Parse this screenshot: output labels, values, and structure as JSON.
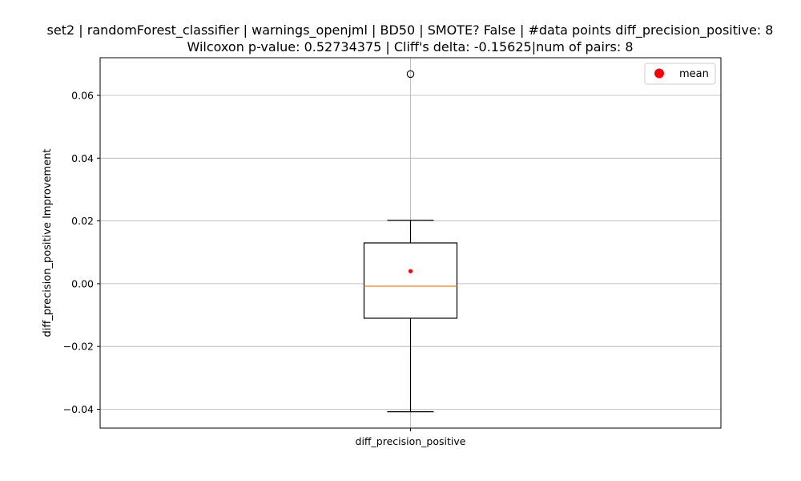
{
  "chart_data": {
    "type": "box",
    "title_line1": "set2 | randomForest_classifier | warnings_openjml | BD50 | SMOTE? False | #data points diff_precision_positive: 8",
    "title_line2": "Wilcoxon p-value: 0.52734375 | Cliff's delta: -0.15625|num of pairs: 8",
    "xlabel": "",
    "ylabel": "diff_precision_positive Improvement",
    "categories": [
      "diff_precision_positive"
    ],
    "ylim": [
      -0.046,
      0.072
    ],
    "yticks": [
      -0.04,
      -0.02,
      0.0,
      0.02,
      0.04,
      0.06
    ],
    "ytick_labels": [
      "−0.04",
      "−0.02",
      "0.00",
      "0.02",
      "0.04",
      "0.06"
    ],
    "grid": true,
    "legend": {
      "placement": "top-right",
      "entries": [
        {
          "label": "mean",
          "color": "#ff0000",
          "marker": "circle"
        }
      ]
    },
    "box": {
      "whisker_low": -0.0408,
      "q1": -0.011,
      "median": -0.0008,
      "q3": 0.013,
      "whisker_high": 0.0202,
      "mean": 0.004,
      "outliers": [
        0.0668
      ]
    },
    "colors": {
      "box": "#000000",
      "median": "#ff7f0e",
      "mean": "#ff0000",
      "grid": "#b0b0b0"
    }
  }
}
